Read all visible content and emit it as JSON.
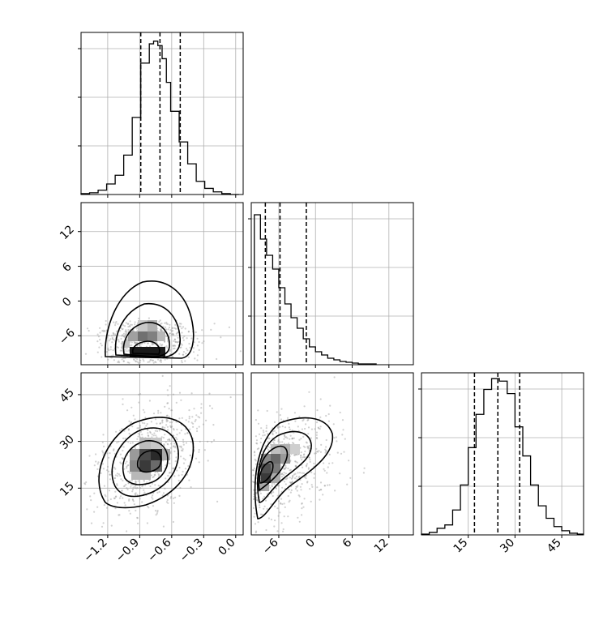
{
  "chart_data": [
    {
      "type": "bar",
      "panel": "p1-histogram",
      "xlim": [
        -1.45,
        0.07
      ],
      "bins": [
        -1.45,
        -1.37,
        -1.29,
        -1.21,
        -1.13,
        -1.05,
        -0.97,
        -0.89,
        -0.81,
        -0.77,
        -0.73,
        -0.69,
        -0.65,
        -0.61,
        -0.53,
        -0.45,
        -0.37,
        -0.29,
        -0.21,
        -0.13,
        -0.05,
        0.03
      ],
      "counts": [
        1,
        2,
        5,
        12,
        22,
        45,
        88,
        150,
        172,
        175,
        170,
        155,
        128,
        95,
        60,
        35,
        15,
        7,
        3,
        1,
        0
      ],
      "ylim": [
        0,
        185
      ],
      "quantile_lines": [
        -0.89,
        -0.71,
        -0.52
      ],
      "xticks": [
        -1.2,
        -0.9,
        -0.6,
        -0.3,
        0.0
      ],
      "grid": true
    },
    {
      "type": "bar",
      "panel": "p2-histogram",
      "xlim": [
        -10.5,
        16
      ],
      "bins": [
        -10,
        -9,
        -8,
        -7,
        -6,
        -5,
        -4,
        -3,
        -2,
        -1,
        0,
        1,
        2,
        3,
        4,
        5,
        6,
        7,
        8,
        9,
        10
      ],
      "counts": [
        185,
        155,
        135,
        118,
        95,
        75,
        58,
        45,
        32,
        22,
        16,
        12,
        8,
        6,
        4,
        3,
        2,
        1,
        1,
        1
      ],
      "ylim": [
        0,
        200
      ],
      "quantile_lines": [
        -8.2,
        -5.8,
        -1.5
      ],
      "xticks": [
        -6,
        0,
        6,
        12
      ],
      "grid": true
    },
    {
      "type": "bar",
      "panel": "p3-histogram",
      "xlim": [
        0,
        52
      ],
      "bins": [
        0,
        2.5,
        5,
        7.5,
        10,
        12.5,
        15,
        17.5,
        20,
        22.5,
        25,
        27.5,
        30,
        32.5,
        35,
        37.5,
        40,
        42.5,
        45,
        47.5,
        50,
        52
      ],
      "counts": [
        1,
        3,
        8,
        12,
        30,
        60,
        105,
        145,
        175,
        188,
        185,
        170,
        130,
        95,
        60,
        35,
        20,
        10,
        5,
        2,
        1
      ],
      "ylim": [
        0,
        195
      ],
      "quantile_lines": [
        17,
        24.5,
        31.5
      ],
      "xticks": [
        15,
        30,
        45
      ],
      "grid": true
    },
    {
      "type": "scatter",
      "panel": "p4-2d-density",
      "xlim": [
        -1.45,
        0.07
      ],
      "ylim": [
        -11,
        17
      ],
      "xticks": [
        -1.2,
        -0.9,
        -0.6,
        -0.3,
        0.0
      ],
      "yticks": [
        -6,
        0,
        6,
        12
      ],
      "ytick_labels": [
        "−6",
        "0",
        "6",
        "12"
      ],
      "density_center": [
        -0.78,
        -8
      ],
      "contour_levels": 4,
      "grid": true
    },
    {
      "type": "scatter",
      "panel": "p5-2d-density",
      "xlim": [
        -1.45,
        0.07
      ],
      "ylim": [
        0,
        52
      ],
      "xticks": [
        -1.2,
        -0.9,
        -0.6,
        -0.3,
        0.0
      ],
      "xtick_labels": [
        "−1.2",
        "−0.9",
        "−0.6",
        "−0.3",
        "0.0"
      ],
      "yticks": [
        15,
        30,
        45
      ],
      "ytick_labels": [
        "15",
        "30",
        "45"
      ],
      "density_center": [
        -0.72,
        24.5
      ],
      "contour_levels": 4,
      "grid": true
    },
    {
      "type": "scatter",
      "panel": "p6-2d-density",
      "xlim": [
        -10.5,
        16
      ],
      "ylim": [
        0,
        52
      ],
      "xticks": [
        -6,
        0,
        6,
        12
      ],
      "xtick_labels": [
        "−6",
        "0",
        "6",
        "12"
      ],
      "density_center": [
        -8.5,
        20
      ],
      "contour_levels": 4,
      "grid": true
    },
    {
      "type": "axis",
      "panel": "p3-axis",
      "xticks": [
        15,
        30,
        45
      ],
      "xtick_labels": [
        "15",
        "30",
        "45"
      ]
    }
  ]
}
